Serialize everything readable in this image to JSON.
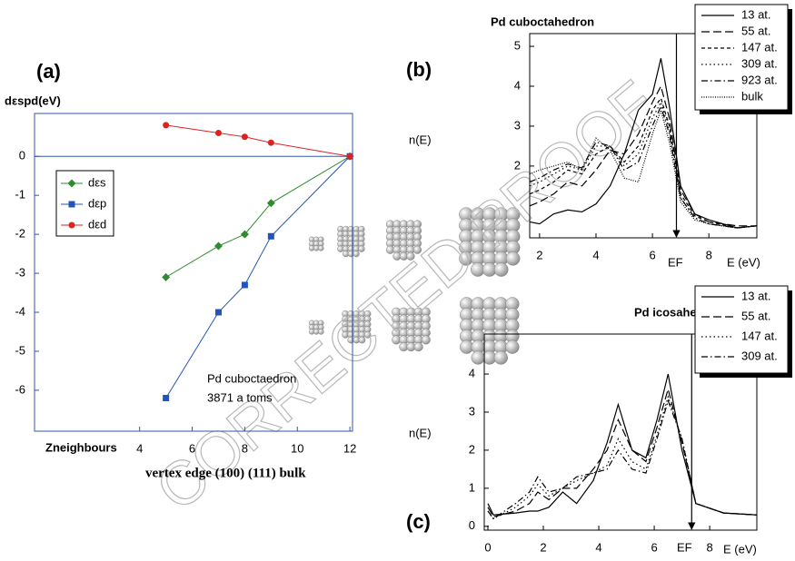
{
  "watermark": "CORRECTED PROOF",
  "chart_data": [
    {
      "type": "line",
      "panel_label": "(a)",
      "ylabel": "dεspd(eV)",
      "xlabel": "Zneighbours",
      "xlabel2": "vertex  edge  (100)   (111) bulk",
      "annotations": [
        "Pd cuboctaedron",
        "3871  a toms"
      ],
      "x": [
        5,
        7,
        8,
        9,
        12
      ],
      "series": [
        {
          "name": "dεs",
          "color": "#2e8b2e",
          "marker": "diamond",
          "values": [
            -3.1,
            -2.3,
            -2.0,
            -1.2,
            0
          ]
        },
        {
          "name": "dεp",
          "color": "#2255bb",
          "marker": "square",
          "values": [
            -6.2,
            -4.0,
            -3.3,
            -2.05,
            0
          ]
        },
        {
          "name": "dεd",
          "color": "#dd2222",
          "marker": "circle",
          "values": [
            0.8,
            0.6,
            0.5,
            0.35,
            0
          ]
        }
      ],
      "xlim": [
        0,
        12.1
      ],
      "xticks": [
        4,
        6,
        8,
        10,
        12
      ],
      "ylim": [
        -7.05,
        1.1
      ],
      "yticks": [
        -6,
        -5,
        -4,
        -3,
        -2,
        -1,
        0
      ],
      "legend": "center left"
    },
    {
      "type": "line",
      "panel_label": "(b)",
      "title": "Pd cuboctahedron",
      "ylabel": "n(E)",
      "xlabel": "E (eV)",
      "fermi_label": "EF",
      "fermi_energy": 6.85,
      "x": [
        1.65,
        2,
        2.5,
        3,
        3.5,
        4,
        4.5,
        5,
        5.5,
        6,
        6.3,
        6.6,
        7,
        7.5,
        8,
        9,
        9.7
      ],
      "series": [
        {
          "name": "13 at.",
          "color": "#000000",
          "linestyle": "solid",
          "values": [
            0.6,
            0.55,
            0.8,
            0.9,
            0.85,
            1.05,
            1.5,
            2.3,
            3.4,
            3.8,
            4.7,
            3.5,
            1.5,
            0.8,
            0.65,
            0.45,
            0.5
          ]
        },
        {
          "name": "55 at.",
          "color": "#000000",
          "linestyle": "dashed",
          "values": [
            1.0,
            1.1,
            1.3,
            1.6,
            1.5,
            1.9,
            2.4,
            2.3,
            2.8,
            3.6,
            4.0,
            3.2,
            1.4,
            0.8,
            0.6,
            0.5,
            0.5
          ]
        },
        {
          "name": "147 at.",
          "color": "#000000",
          "linestyle": "short-dashed",
          "values": [
            1.3,
            1.4,
            1.6,
            1.9,
            1.8,
            2.3,
            2.5,
            2.1,
            2.5,
            3.4,
            3.7,
            3.0,
            1.3,
            0.75,
            0.6,
            0.45,
            0.5
          ]
        },
        {
          "name": "309 at.",
          "color": "#000000",
          "linestyle": "dotted",
          "values": [
            1.5,
            1.6,
            1.8,
            2.0,
            1.9,
            2.5,
            2.5,
            2.0,
            2.3,
            3.2,
            3.6,
            2.9,
            1.2,
            0.7,
            0.55,
            0.45,
            0.5
          ]
        },
        {
          "name": "923 at.",
          "color": "#000000",
          "linestyle": "dash-dotted",
          "values": [
            1.6,
            1.7,
            1.9,
            2.05,
            1.95,
            2.6,
            2.5,
            1.9,
            2.1,
            3.0,
            3.5,
            2.8,
            1.2,
            0.7,
            0.55,
            0.45,
            0.5
          ]
        },
        {
          "name": "bulk",
          "color": "#000000",
          "linestyle": "dense-dotted",
          "values": [
            1.8,
            1.9,
            2.0,
            2.1,
            1.9,
            2.7,
            2.4,
            1.7,
            1.6,
            2.8,
            3.4,
            2.6,
            1.1,
            0.65,
            0.55,
            0.45,
            0.5
          ]
        }
      ],
      "xlim": [
        1.65,
        9.7
      ],
      "xticks": [
        2,
        4,
        6,
        8
      ],
      "ylim": [
        0.2,
        5.32
      ],
      "yticks": [
        2,
        3,
        4,
        5
      ],
      "legend": "upper right"
    },
    {
      "type": "line",
      "panel_label": "(c)",
      "title": "Pd icosahedron",
      "ylabel": "n(E)",
      "xlabel": "E (eV)",
      "fermi_label": "EF",
      "fermi_energy": 7.35,
      "x": [
        0,
        0.2,
        1,
        1.5,
        1.8,
        2.2,
        2.7,
        3.2,
        3.8,
        4.3,
        4.7,
        5.2,
        5.7,
        6.1,
        6.5,
        7,
        7.5,
        8.5,
        9.7
      ],
      "series": [
        {
          "name": "13 at.",
          "color": "#000000",
          "linestyle": "solid",
          "values": [
            0.6,
            0.3,
            0.35,
            0.4,
            0.4,
            0.5,
            0.9,
            0.6,
            1.2,
            2.2,
            3.2,
            2.0,
            1.8,
            2.8,
            4.0,
            2.0,
            0.6,
            0.35,
            0.3
          ]
        },
        {
          "name": "55 at.",
          "color": "#000000",
          "linestyle": "dashed",
          "values": [
            0.5,
            0.25,
            0.4,
            0.6,
            0.9,
            0.7,
            1.0,
            1.0,
            1.5,
            2.0,
            2.8,
            2.0,
            1.7,
            2.6,
            3.6,
            2.2,
            0.6,
            0.35,
            0.3
          ]
        },
        {
          "name": "147 at.",
          "color": "#000000",
          "linestyle": "dotted",
          "values": [
            0.4,
            0.2,
            0.5,
            0.8,
            1.1,
            0.8,
            1.0,
            1.2,
            1.4,
            1.6,
            2.3,
            1.7,
            1.5,
            2.4,
            3.4,
            2.3,
            0.6,
            0.35,
            0.3
          ]
        },
        {
          "name": "309 at.",
          "color": "#000000",
          "linestyle": "dash-dotted",
          "values": [
            0.4,
            0.2,
            0.6,
            0.9,
            1.3,
            0.9,
            1.0,
            1.3,
            1.4,
            1.5,
            2.0,
            1.5,
            1.4,
            2.3,
            3.3,
            2.3,
            0.6,
            0.35,
            0.3
          ]
        }
      ],
      "xlim": [
        -0.13,
        9.7
      ],
      "xticks": [
        0,
        2,
        4,
        6,
        8
      ],
      "ylim": [
        -0.1,
        5.05
      ],
      "yticks": [
        0,
        1,
        2,
        3,
        4
      ],
      "legend": "upper right"
    }
  ]
}
